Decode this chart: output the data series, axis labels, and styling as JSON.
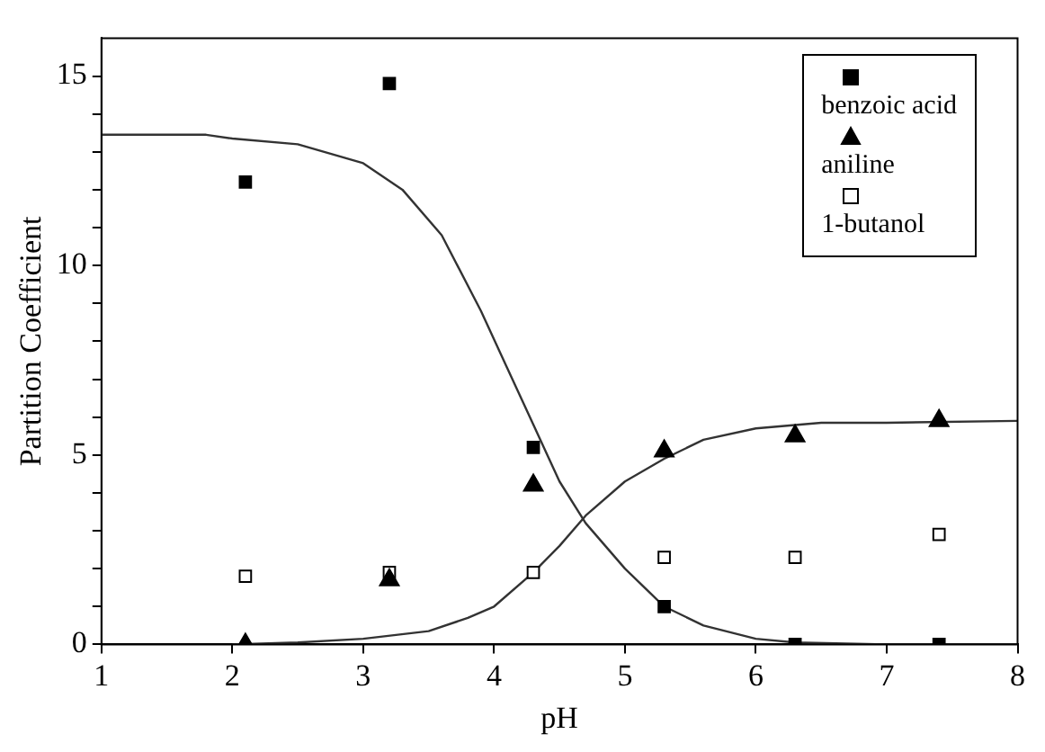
{
  "chart_data": {
    "type": "scatter",
    "xlabel": "pH",
    "ylabel": "Partition Coefficient",
    "xlim": [
      1,
      8
    ],
    "ylim": [
      0,
      16
    ],
    "xticks": [
      1,
      2,
      3,
      4,
      5,
      6,
      7,
      8
    ],
    "yticks": [
      0,
      {
        "value": 1,
        "label": null
      },
      {
        "value": 2,
        "label": null
      },
      {
        "value": 3,
        "label": null
      },
      {
        "value": 4,
        "label": null
      },
      5,
      {
        "value": 6,
        "label": null
      },
      {
        "value": 7,
        "label": null
      },
      {
        "value": 8,
        "label": null
      },
      {
        "value": 9,
        "label": null
      },
      10,
      {
        "value": 11,
        "label": null
      },
      {
        "value": 12,
        "label": null
      },
      {
        "value": 13,
        "label": null
      },
      {
        "value": 14,
        "label": null
      },
      15
    ],
    "grid": false,
    "legend": "top right",
    "series": [
      {
        "name": "benzoic acid",
        "marker": "square",
        "color": "#000000",
        "x": [
          2.1,
          3.2,
          4.3,
          5.3,
          6.3,
          7.4
        ],
        "values": [
          12.2,
          14.8,
          5.2,
          1.0,
          0.0,
          0.0
        ]
      },
      {
        "name": "aniline",
        "marker": "triangle",
        "color": "#000000",
        "x": [
          2.1,
          3.2,
          4.3,
          5.3,
          6.3,
          7.4
        ],
        "values": [
          0.0,
          1.7,
          4.2,
          5.1,
          5.5,
          5.9
        ]
      },
      {
        "name": "1-butanol",
        "marker": "square",
        "color": "#ffffff",
        "x": [
          2.1,
          3.2,
          4.3,
          5.3,
          6.3,
          7.4
        ],
        "values": [
          1.8,
          1.9,
          1.9,
          2.3,
          2.3,
          2.9
        ]
      },
      {
        "type": "line",
        "marker": "none",
        "color": "#333333",
        "x": [
          1,
          1.8,
          2,
          2.5,
          3,
          3.3,
          3.6,
          3.9,
          4.1,
          4.3,
          4.5,
          4.7,
          5.0,
          5.3,
          5.6,
          6.0,
          6.3,
          7.0,
          8
        ],
        "values": [
          13.45,
          13.45,
          13.35,
          13.2,
          12.7,
          12.0,
          10.8,
          8.8,
          7.3,
          5.8,
          4.3,
          3.2,
          2.0,
          1.0,
          0.5,
          0.15,
          0.05,
          0.0,
          0.0
        ]
      },
      {
        "type": "line",
        "marker": "none",
        "color": "#333333",
        "x": [
          2,
          2.5,
          3,
          3.5,
          3.8,
          4.0,
          4.3,
          4.5,
          4.7,
          5.0,
          5.3,
          5.6,
          6.0,
          6.5,
          7,
          8
        ],
        "values": [
          0,
          0.05,
          0.15,
          0.35,
          0.7,
          1.0,
          1.9,
          2.6,
          3.4,
          4.3,
          4.9,
          5.4,
          5.7,
          5.85,
          5.85,
          5.9
        ]
      }
    ]
  }
}
